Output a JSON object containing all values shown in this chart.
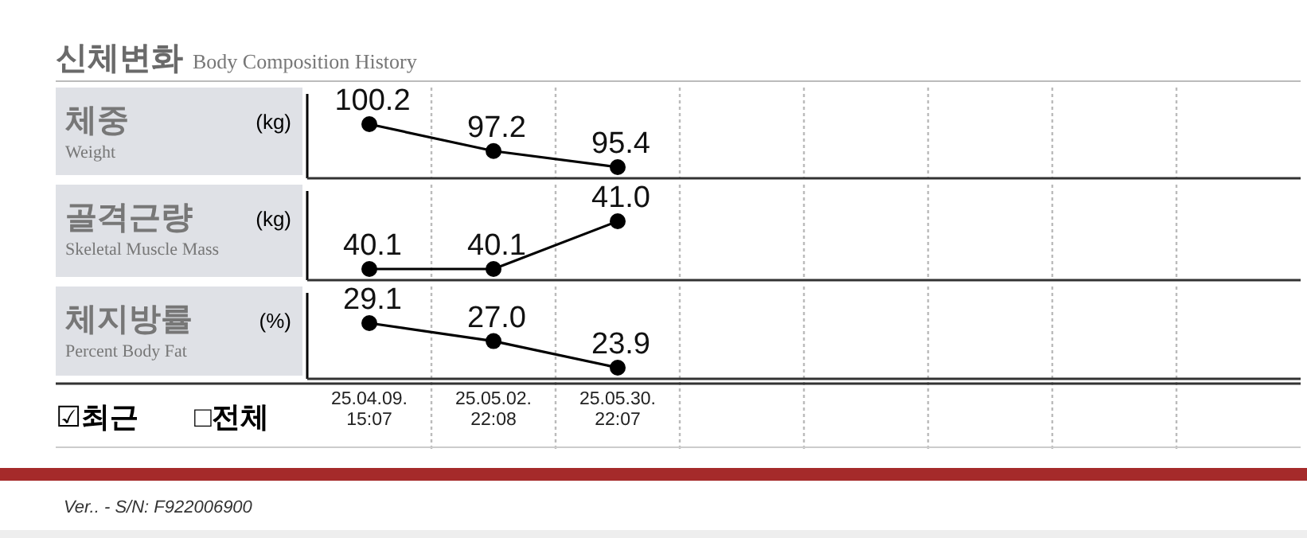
{
  "chart_data": [
    {
      "type": "other",
      "title": "신체변화",
      "subtitle": "Body Composition History"
    },
    {
      "type": "line",
      "title": "체중",
      "annotations": [
        "Weight"
      ],
      "ylabel": "(kg)",
      "categories": [
        null,
        null,
        null,
        null,
        null,
        null,
        null,
        null
      ],
      "series": [
        {
          "color": "#000000",
          "values": [
            100.2,
            97.2,
            95.4,
            null,
            null,
            null,
            null,
            null
          ],
          "value_labels": [
            "100.2",
            "97.2",
            "95.4",
            null,
            null,
            null,
            null,
            null
          ]
        }
      ],
      "marker": "circle",
      "grid": "x",
      "tick_labels": false
    },
    {
      "type": "line",
      "title": "골격근량",
      "annotations": [
        "Skeletal Muscle Mass"
      ],
      "ylabel": "(kg)",
      "categories": [
        null,
        null,
        null,
        null,
        null,
        null,
        null,
        null
      ],
      "series": [
        {
          "color": "#000000",
          "values": [
            40.1,
            40.1,
            41.0,
            null,
            null,
            null,
            null,
            null
          ],
          "value_labels": [
            "40.1",
            "40.1",
            "41.0",
            null,
            null,
            null,
            null,
            null
          ]
        }
      ],
      "marker": "circle",
      "grid": "x",
      "tick_labels": false
    },
    {
      "type": "line",
      "title": "체지방률",
      "annotations": [
        "Percent Body Fat"
      ],
      "ylabel": "(%)",
      "categories": [
        "25.04.09. 15:07",
        "25.05.02. 22:08",
        "25.05.30. 22:07",
        null,
        null,
        null,
        null,
        null
      ],
      "series": [
        {
          "color": "#000000",
          "values": [
            29.1,
            27.0,
            23.9,
            null,
            null,
            null,
            null,
            null
          ],
          "value_labels": [
            "29.1",
            "27.0",
            "23.9",
            null,
            null,
            null,
            null,
            null
          ]
        }
      ],
      "marker": "circle",
      "grid": "x",
      "tick_labels": "x"
    },
    {
      "type": "other",
      "annotations": [
        "☑최근",
        "□전체",
        "Ver.. - S/N: F922006900"
      ]
    }
  ]
}
